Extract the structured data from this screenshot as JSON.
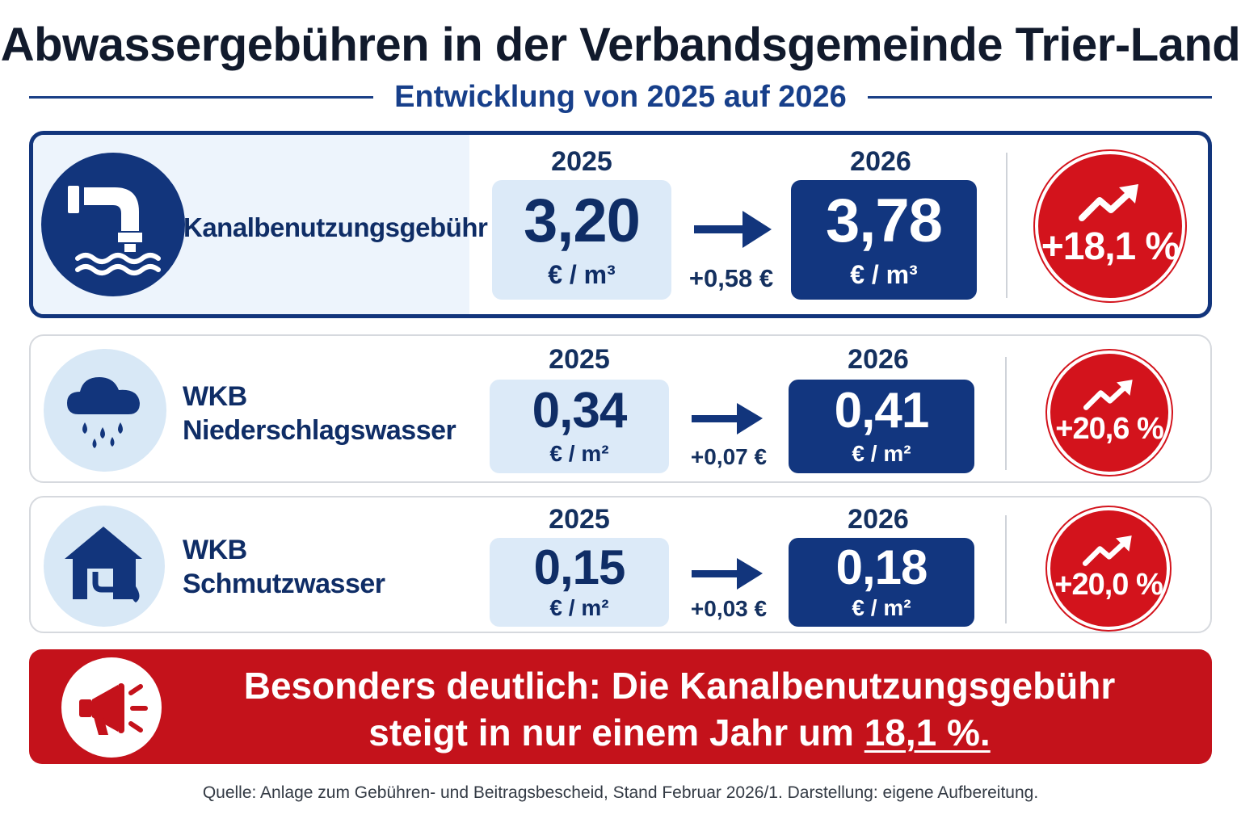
{
  "title": "Abwassergebühren in der Verbandsgemeinde Trier-Land",
  "subtitle": "Entwicklung von 2025 auf 2026",
  "rows": [
    {
      "label_line1": "Kanalbenutzungsgebühr",
      "label_line2": "",
      "icon": "pipe-water-icon",
      "year_old": "2025",
      "year_new": "2026",
      "value_old": "3,20",
      "value_new": "3,78",
      "unit_old": "€ / m³",
      "unit_new": "€ / m³",
      "diff": "+0,58 €",
      "pct": "+18,1 %"
    },
    {
      "label_line1": "WKB",
      "label_line2": "Niederschlagswasser",
      "icon": "rain-cloud-icon",
      "year_old": "2025",
      "year_new": "2026",
      "value_old": "0,34",
      "value_new": "0,41",
      "unit_old": "€ / m²",
      "unit_new": "€ / m²",
      "diff": "+0,07 €",
      "pct": "+20,6 %"
    },
    {
      "label_line1": "WKB",
      "label_line2": "Schmutzwasser",
      "icon": "house-drain-icon",
      "year_old": "2025",
      "year_new": "2026",
      "value_old": "0,15",
      "value_new": "0,18",
      "unit_old": "€ / m²",
      "unit_new": "€ / m²",
      "diff": "+0,03 €",
      "pct": "+20,0 %"
    }
  ],
  "callout": {
    "line1": "Besonders deutlich: Die Kanalbenutzungsgebühr",
    "line2_prefix": "steigt in nur einem Jahr um ",
    "line2_highlight": "18,1 %."
  },
  "source": "Quelle: Anlage zum Gebühren- und Beitragsbescheid, Stand Februar 2026/1. Darstellung: eigene Aufbereitung.",
  "colors": {
    "navy": "#12357c",
    "light_blue": "#dceaf8",
    "red": "#d3131c",
    "callout_red": "#c4121b"
  }
}
